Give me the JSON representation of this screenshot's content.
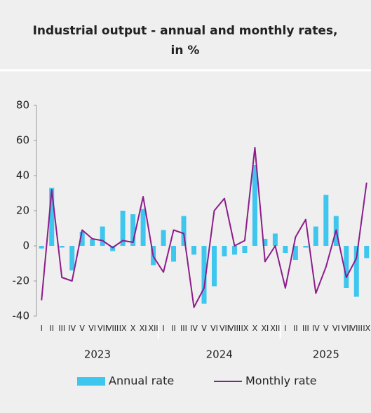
{
  "chart_data": {
    "type": "bar_line",
    "title": [
      "Industrial output - annual and monthly rates,",
      "in %"
    ],
    "categories": [
      "I",
      "II",
      "III",
      "IV",
      "V",
      "VI",
      "VII",
      "VIII",
      "IX",
      "X",
      "XI",
      "XII",
      "I",
      "II",
      "III",
      "IV",
      "V",
      "VI",
      "VII",
      "VIII",
      "IX",
      "X",
      "XI",
      "XII",
      "I",
      "II",
      "III",
      "IV",
      "V",
      "VI",
      "VII",
      "VIII",
      "IX"
    ],
    "groups": [
      "2023",
      "2024",
      "2025"
    ],
    "series": [
      {
        "name": "Annual rate",
        "color": "#3ec6ef",
        "kind": "bar",
        "values": [
          -1.5,
          33,
          -1,
          -14,
          8,
          4,
          11,
          -3,
          20,
          18,
          21,
          -11,
          9,
          -9,
          17,
          -5,
          -33,
          -23,
          -6,
          -5,
          -4,
          46,
          4,
          7,
          -4,
          -8,
          -1,
          11,
          29,
          17,
          -24,
          -29,
          -7
        ]
      },
      {
        "name": "Monthly rate",
        "color": "#8c1d8a",
        "kind": "line",
        "values": [
          -31,
          32,
          -18,
          -20,
          9,
          4,
          3,
          -1,
          3,
          2,
          28,
          -6,
          -15,
          9,
          7,
          -35,
          -24,
          20,
          27,
          0,
          3,
          56,
          -9,
          0,
          -24,
          5,
          15,
          -27,
          -12,
          9,
          -18,
          -7,
          36
        ]
      }
    ],
    "ylim": [
      -40,
      80
    ],
    "yticks": [
      -40,
      -20,
      0,
      20,
      40,
      60,
      80
    ]
  }
}
